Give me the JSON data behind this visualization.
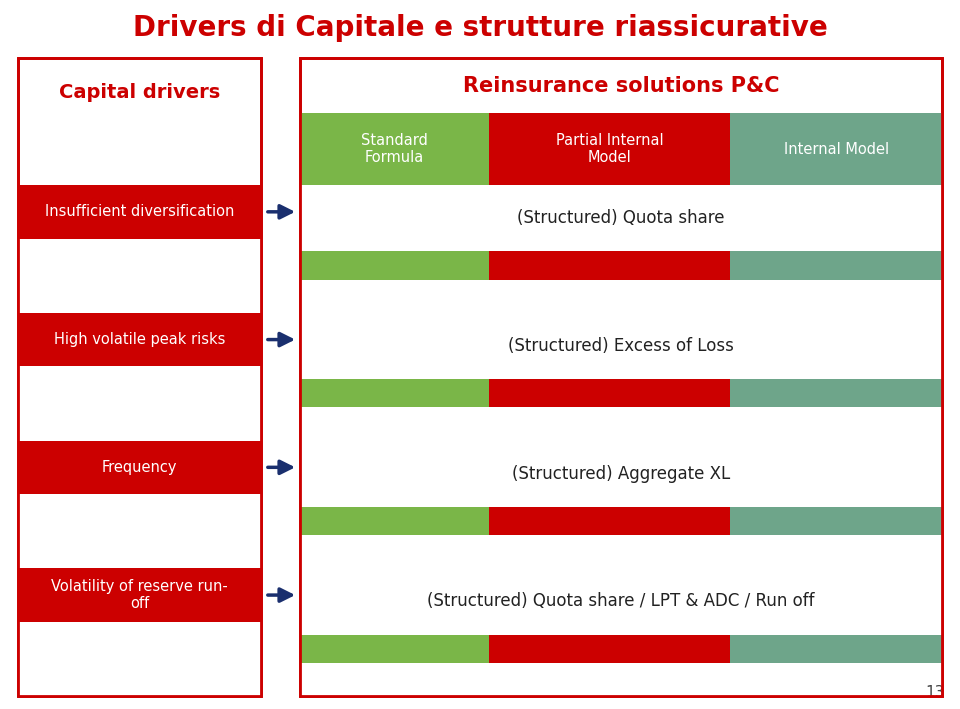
{
  "title": "Drivers di Capitale e strutture riassicurative",
  "title_color": "#cc0000",
  "title_fontsize": 20,
  "bg_color": "#ffffff",
  "left_box_title": "Capital drivers",
  "left_box_title_color": "#cc0000",
  "right_box_title": "Reinsurance solutions P&C",
  "right_box_title_color": "#cc0000",
  "red_color": "#cc0000",
  "green_color": "#7ab648",
  "teal_color": "#6ea58a",
  "drivers": [
    "Insufficient diversification",
    "High volatile peak risks",
    "Frequency",
    "Volatility of reserve run-\noff"
  ],
  "solutions": [
    "(Structured) Quota share",
    "(Structured) Excess of Loss",
    "(Structured) Aggregate XL",
    "(Structured) Quota share / LPT & ADC / Run off"
  ],
  "col_headers": [
    "Standard\nFormula",
    "Partial Internal\nModel",
    "Internal Model"
  ],
  "page_number": "13",
  "navy_color": "#1a2f6e",
  "arrow_color": "#1a3a6e"
}
